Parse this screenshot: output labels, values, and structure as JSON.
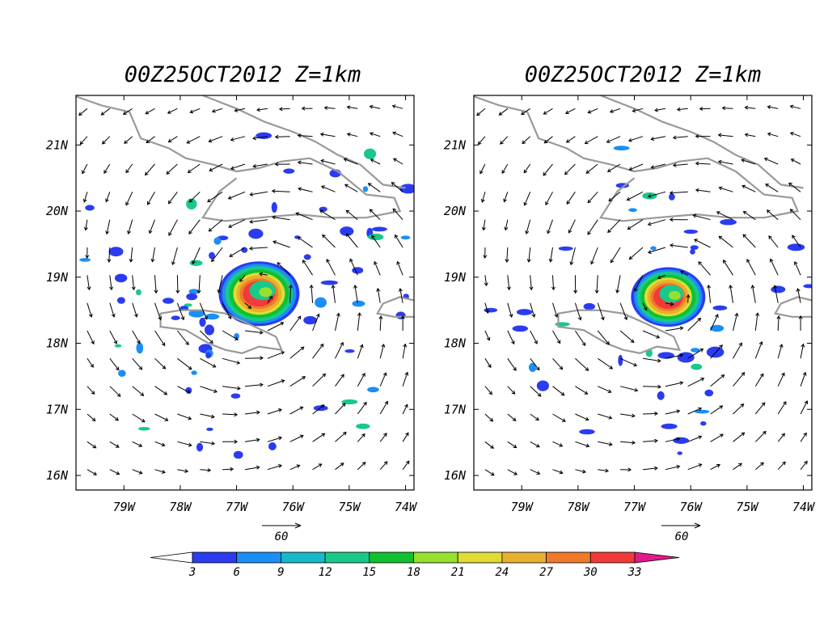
{
  "panels": [
    {
      "title": "00Z25OCT2012  Z=1km",
      "lat_labels": [
        "21N",
        "20N",
        "19N",
        "18N",
        "17N",
        "16N"
      ],
      "lon_labels": [
        "79W",
        "78W",
        "77W",
        "76W",
        "75W",
        "74W"
      ],
      "vector_ref_label": "60",
      "eye": {
        "lon": -76.6,
        "lat": 18.75
      }
    },
    {
      "title": "00Z25OCT2012  Z=1km",
      "lat_labels": [
        "21N",
        "20N",
        "19N",
        "18N",
        "17N",
        "16N"
      ],
      "lon_labels": [
        "79W",
        "78W",
        "77W",
        "76W",
        "75W",
        "74W"
      ],
      "vector_ref_label": "60",
      "eye": {
        "lon": -76.4,
        "lat": 18.7
      }
    }
  ],
  "colorbar": {
    "labels": [
      "3",
      "6",
      "9",
      "12",
      "15",
      "18",
      "21",
      "24",
      "27",
      "30",
      "33"
    ],
    "colors": [
      "#2b3cf0",
      "#1a8ff5",
      "#16b9c9",
      "#18c98a",
      "#10c030",
      "#96e02e",
      "#e0dc36",
      "#e8b02e",
      "#f07a28",
      "#f23a3a",
      "#e01a8c"
    ]
  },
  "colors": {
    "coast": "#999999",
    "arrow": "#000000"
  }
}
